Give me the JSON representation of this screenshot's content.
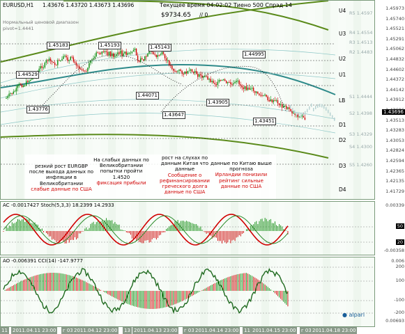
{
  "header": {
    "symbol": "EURUSD,H1",
    "ohlc": "1.43676 1.43720 1.43673 1.43696",
    "server_time": "Текущее время 04:02:02 Тиено 500 Спрэд 14",
    "balance": "$9734.65",
    "balance_suffix": "// 0",
    "range_label": "Нормальный ценовой диапазон",
    "pivot": "pivot=1.4441"
  },
  "price_scale": [
    "1.45973",
    "1.45740",
    "1.45521",
    "1.45291",
    "1.45062",
    "1.44832",
    "1.44602",
    "1.44372",
    "1.44142",
    "1.43912",
    "1.43696",
    "1.43513",
    "1.43283",
    "1.43053",
    "1.42824",
    "1.42594",
    "1.42365",
    "1.42135",
    "1.41729"
  ],
  "pivot_right_labels": [
    "R5 1.4597",
    "R4 1.4554",
    "R3 1.4513",
    "R2 1.4483",
    "S1 1.4444",
    "S2 1.4398",
    "S3 1.4329",
    "S4 1.4300",
    "S5 1.4260"
  ],
  "current_price": "1.43696",
  "level_labels": [
    "U4",
    "U3",
    "U2",
    "U1",
    "LB",
    "D1",
    "D2",
    "D3",
    "D4"
  ],
  "price_tags": [
    "1.45183",
    "1.45193",
    "1.45143",
    "1.44995",
    "1.44529",
    "1.44071",
    "1.43905",
    "1.43776",
    "1.43647",
    "1.43451"
  ],
  "notes": [
    {
      "black": "резкий рост EURGBP после выхода данных по инфляции в Великобритании",
      "red": "слабые данные по США"
    },
    {
      "black": "На слабых данных по Великобритании попытки пройти 1.4520",
      "red": "фиксация прибыли"
    },
    {
      "black": "рост на слухах по данным Китая что данные",
      "red": "Сообщение о рефинансировании греческого долга данные по США"
    },
    {
      "black": "данные по Китаю выше прогноза",
      "red": "Ирландии понизили рейтинг сильные данные по США"
    }
  ],
  "ac_panel": {
    "label": "AC -0.0017427  Stoch(5,3,3) 18.2399 14.2933",
    "scale": [
      "0.00339",
      "50",
      "20",
      "-0.00358"
    ]
  },
  "ao_panel": {
    "label": "AO -0.006391  CCI(14) -147.9777",
    "scale": [
      "0.006",
      "200",
      "100",
      "-100",
      "-200",
      "0.00693"
    ]
  },
  "dates": [
    "11",
    "2011.04.11 23:00",
    "г 03",
    "2011.04.12 23:00",
    "13",
    "2011.04.13 23:00",
    "г 03",
    "2011.04.14 23:00",
    "11",
    "2011.04.15 23:00",
    "г 03",
    "2011.04.18 23:00"
  ],
  "brand": "alpari",
  "colors": {
    "bull": "#0a8a0a",
    "bear": "#d00000",
    "trend": "#2e8a8a",
    "channel": "#5a8a1a"
  }
}
